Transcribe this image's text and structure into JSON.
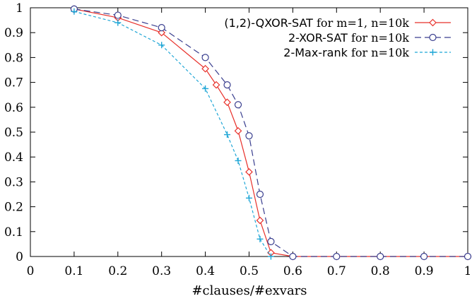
{
  "chart_data": {
    "type": "line",
    "xlabel": "#clauses/#exvars",
    "ylabel": "",
    "xlim": [
      0,
      1
    ],
    "ylim": [
      0,
      1
    ],
    "xticks": [
      "0",
      "0.1",
      "0.2",
      "0.3",
      "0.4",
      "0.5",
      "0.6",
      "0.7",
      "0.8",
      "0.9",
      "1"
    ],
    "yticks": [
      "0",
      "0.1",
      "0.2",
      "0.3",
      "0.4",
      "0.5",
      "0.6",
      "0.7",
      "0.8",
      "0.9",
      "1"
    ],
    "grid": false,
    "legend_position": "top-right",
    "series": [
      {
        "name": "(1,2)-QXOR-SAT for m=1, n=10k",
        "name_parts": [
          "(1,2)-QXOR-SAT",
          " for m=1, n=10k"
        ],
        "color": "#e8302a",
        "marker": "diamond",
        "dash": "solid",
        "x": [
          0.1,
          0.2,
          0.3,
          0.4,
          0.425,
          0.45,
          0.475,
          0.5,
          0.525,
          0.55,
          0.6,
          0.7,
          0.8,
          0.9,
          1.0
        ],
        "y": [
          0.995,
          0.96,
          0.9,
          0.755,
          0.69,
          0.62,
          0.505,
          0.34,
          0.145,
          0.015,
          0.0,
          0.0,
          0.0,
          0.0,
          0.0
        ]
      },
      {
        "name": "2-XOR-SAT for n=10k",
        "name_parts": [
          "2-XOR-SAT",
          " for n=10k"
        ],
        "color": "#3a3f8f",
        "marker": "circle",
        "dash": "dashed",
        "x": [
          0.1,
          0.2,
          0.3,
          0.4,
          0.45,
          0.475,
          0.5,
          0.525,
          0.55,
          0.6,
          0.7,
          0.8,
          0.9,
          1.0
        ],
        "y": [
          0.995,
          0.97,
          0.92,
          0.8,
          0.69,
          0.61,
          0.485,
          0.25,
          0.06,
          0.0,
          0.0,
          0.0,
          0.0,
          0.0
        ]
      },
      {
        "name": "2-Max-rank for n=10k",
        "name_parts": [
          "2-Max-rank",
          " for n=10k"
        ],
        "color": "#1fa6d6",
        "marker": "plus",
        "dash": "dotted",
        "x": [
          0.1,
          0.2,
          0.3,
          0.4,
          0.45,
          0.475,
          0.5,
          0.525,
          0.55
        ],
        "y": [
          0.985,
          0.94,
          0.85,
          0.675,
          0.49,
          0.385,
          0.235,
          0.07,
          0.0
        ]
      }
    ]
  }
}
